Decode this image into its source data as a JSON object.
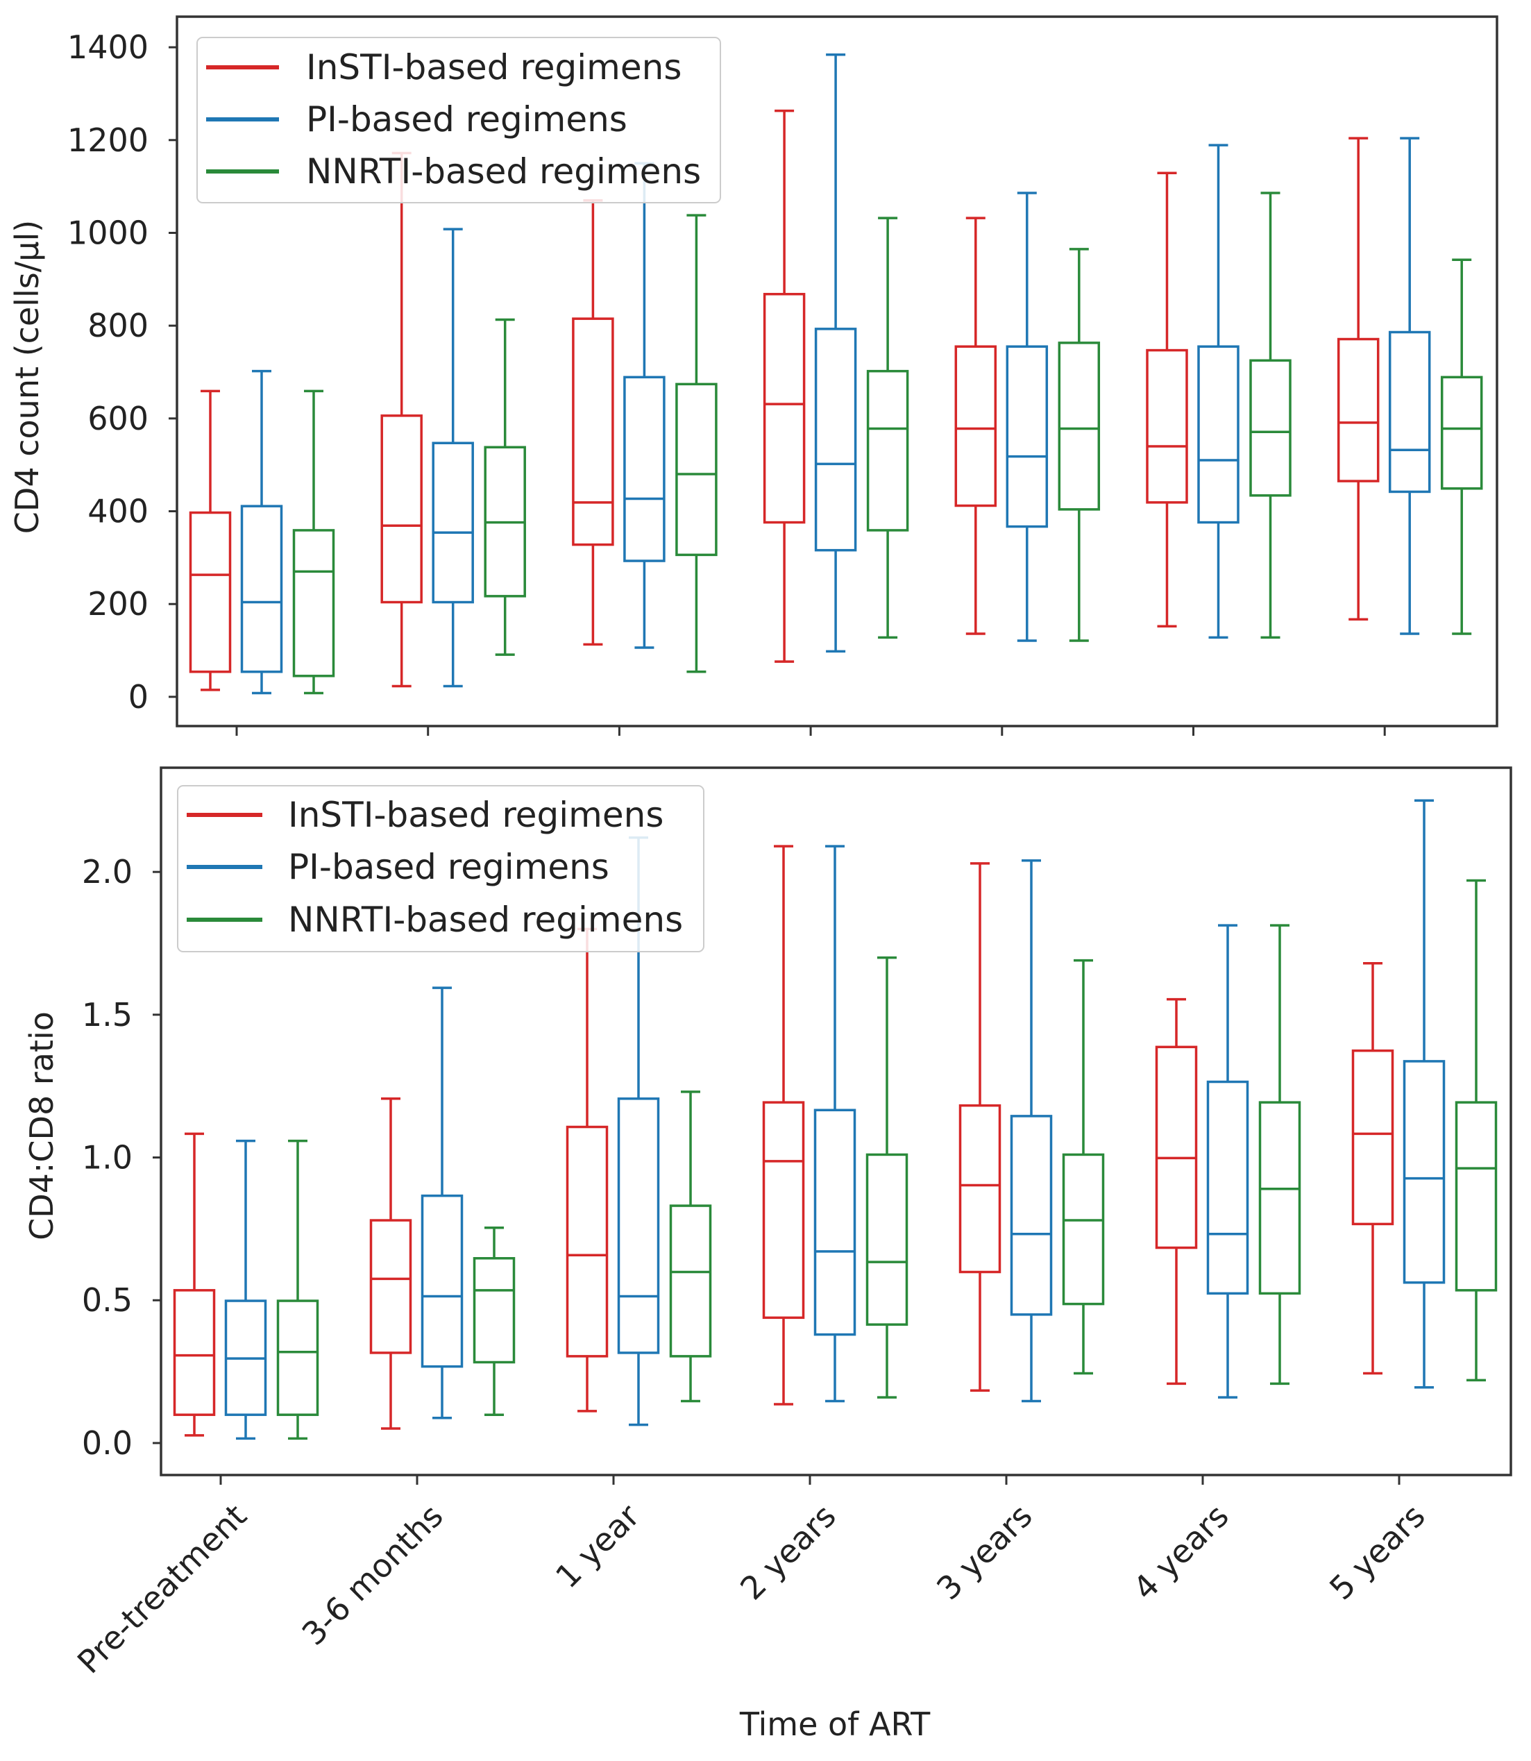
{
  "chart_data": [
    {
      "type": "box",
      "title": "",
      "xlabel": "",
      "ylabel": "CD4 count (cells/µl)",
      "ylim": [
        -63,
        1466
      ],
      "yticks": [
        0,
        200,
        400,
        600,
        800,
        1000,
        1200,
        1400
      ],
      "ytick_labels": [
        "0",
        "200",
        "400",
        "600",
        "800",
        "1000",
        "1200",
        "1400"
      ],
      "categories": [
        "Pre-treatment",
        "3-6 months",
        "1 year",
        "2 years",
        "3 years",
        "4 years",
        "5 years"
      ],
      "legend_position": "top-left",
      "series": [
        {
          "name": "InSTI-based regimens",
          "color": "#d62728",
          "whisker_low": [
            15,
            23,
            113,
            76,
            136,
            152,
            167
          ],
          "q1": [
            54,
            204,
            328,
            376,
            412,
            419,
            465
          ],
          "median": [
            263,
            369,
            419,
            631,
            578,
            540,
            591
          ],
          "q3": [
            397,
            606,
            815,
            868,
            755,
            747,
            771
          ],
          "whisker_high": [
            659,
            1172,
            1070,
            1263,
            1032,
            1129,
            1204
          ]
        },
        {
          "name": "PI-based regimens",
          "color": "#1f77b4",
          "whisker_low": [
            8,
            23,
            106,
            98,
            121,
            128,
            136
          ],
          "q1": [
            54,
            204,
            293,
            316,
            367,
            376,
            442
          ],
          "median": [
            204,
            354,
            427,
            502,
            518,
            510,
            532
          ],
          "q3": [
            411,
            547,
            689,
            793,
            755,
            755,
            786
          ],
          "whisker_high": [
            702,
            1008,
            1150,
            1384,
            1086,
            1189,
            1204
          ]
        },
        {
          "name": "NNRTI-based regimens",
          "color": "#2a8a3a",
          "whisker_low": [
            8,
            91,
            54,
            128,
            121,
            128,
            136
          ],
          "q1": [
            45,
            217,
            306,
            359,
            404,
            434,
            449
          ],
          "median": [
            270,
            376,
            480,
            578,
            578,
            571,
            578
          ],
          "q3": [
            359,
            538,
            674,
            702,
            763,
            725,
            689
          ],
          "whisker_high": [
            659,
            813,
            1038,
            1032,
            965,
            1086,
            942
          ]
        }
      ]
    },
    {
      "type": "box",
      "title": "",
      "xlabel": "Time of ART",
      "ylabel": "CD4:CD8 ratio",
      "ylim": [
        -0.112,
        2.365
      ],
      "yticks": [
        0,
        0.5,
        1.0,
        1.5,
        2.0
      ],
      "ytick_labels": [
        "0.0",
        "0.5",
        "1.0",
        "1.5",
        "2.0"
      ],
      "categories": [
        "Pre-treatment",
        "3-6 months",
        "1 year",
        "2 years",
        "3 years",
        "4 years",
        "5 years"
      ],
      "legend_position": "top-left",
      "series": [
        {
          "name": "InSTI-based regimens",
          "color": "#d62728",
          "whisker_low": [
            0.027,
            0.051,
            0.112,
            0.136,
            0.184,
            0.208,
            0.244
          ],
          "q1": [
            0.099,
            0.316,
            0.304,
            0.439,
            0.599,
            0.684,
            0.767
          ],
          "median": [
            0.307,
            0.575,
            0.658,
            0.987,
            0.903,
            0.998,
            1.083
          ],
          "q3": [
            0.535,
            0.78,
            1.107,
            1.193,
            1.182,
            1.387,
            1.374
          ],
          "whisker_high": [
            1.083,
            1.206,
            1.8,
            2.09,
            2.03,
            1.554,
            1.68
          ]
        },
        {
          "name": "PI-based regimens",
          "color": "#1f77b4",
          "whisker_low": [
            0.016,
            0.088,
            0.064,
            0.147,
            0.147,
            0.16,
            0.195
          ],
          "q1": [
            0.099,
            0.268,
            0.316,
            0.38,
            0.45,
            0.524,
            0.562
          ],
          "median": [
            0.296,
            0.514,
            0.514,
            0.671,
            0.732,
            0.732,
            0.927
          ],
          "q3": [
            0.498,
            0.866,
            1.206,
            1.166,
            1.145,
            1.265,
            1.337
          ],
          "whisker_high": [
            1.058,
            1.594,
            2.12,
            2.09,
            2.04,
            1.813,
            2.25
          ]
        },
        {
          "name": "NNRTI-based regimens",
          "color": "#2a8a3a",
          "whisker_low": [
            0.016,
            0.099,
            0.147,
            0.16,
            0.244,
            0.208,
            0.22
          ],
          "q1": [
            0.099,
            0.283,
            0.304,
            0.415,
            0.487,
            0.524,
            0.535
          ],
          "median": [
            0.319,
            0.535,
            0.599,
            0.634,
            0.78,
            0.89,
            0.962
          ],
          "q3": [
            0.498,
            0.647,
            0.831,
            1.01,
            1.01,
            1.193,
            1.193
          ],
          "whisker_high": [
            1.058,
            0.754,
            1.23,
            1.7,
            1.69,
            1.813,
            1.97
          ]
        }
      ]
    }
  ]
}
